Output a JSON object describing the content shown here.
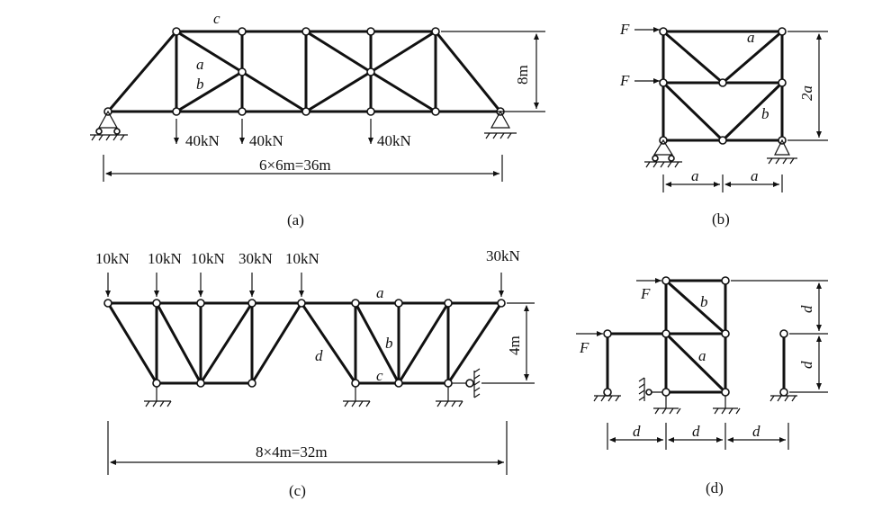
{
  "diagram_a": {
    "member_label_c": "c",
    "member_label_a": "a",
    "member_label_b": "b",
    "load_1": "40kN",
    "load_2": "40kN",
    "load_3": "40kN",
    "height_dim": "8m",
    "span_dim": "6×6m=36m",
    "caption": "(a)"
  },
  "diagram_b": {
    "force_top": "F",
    "force_mid": "F",
    "member_label_a": "a",
    "member_label_b": "b",
    "height_dim": "2a",
    "width_dim_1": "a",
    "width_dim_2": "a",
    "caption": "(b)"
  },
  "diagram_c": {
    "load_1": "10kN",
    "load_2": "10kN",
    "load_3": "10kN",
    "load_4": "30kN",
    "load_5": "10kN",
    "load_6": "30kN",
    "member_label_a": "a",
    "member_label_b": "b",
    "member_label_c": "c",
    "member_label_d": "d",
    "height_dim": "4m",
    "span_dim": "8×4m=32m",
    "caption": "(c)"
  },
  "diagram_d": {
    "force_top": "F",
    "force_left": "F",
    "member_label_a": "a",
    "member_label_b": "b",
    "height_dim_1": "d",
    "height_dim_2": "d",
    "width_dim_1": "d",
    "width_dim_2": "d",
    "width_dim_3": "d",
    "caption": "(d)"
  }
}
